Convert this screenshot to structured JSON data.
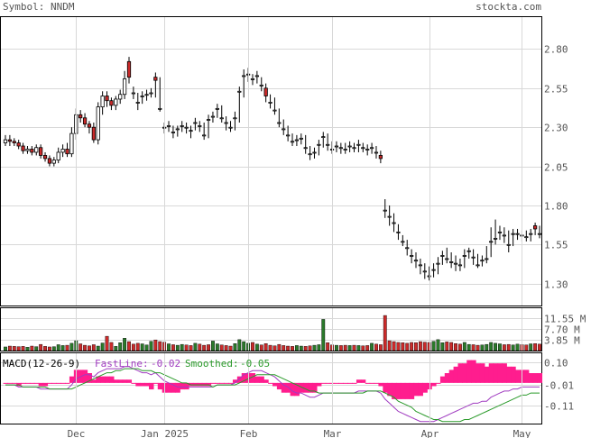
{
  "header": {
    "symbol_label": "Symbol: NNDM",
    "site": "stockta.com"
  },
  "colors": {
    "grid": "#d8d8d8",
    "frame": "#000000",
    "up": "#ffffff",
    "down": "#cc2a2a",
    "vol_up": "#2a7a2a",
    "vol_down": "#cc2a2a",
    "macd_hist": "#ff1d8e",
    "fast_line": "#a03cc0",
    "smooth_line": "#2a9a2a",
    "text": "#555555"
  },
  "chart_data": [
    {
      "type": "candlestick",
      "title": "Symbol: NNDM",
      "y_ticks": [
        "2.80",
        "2.55",
        "2.30",
        "2.05",
        "1.80",
        "1.55",
        "1.30"
      ],
      "ylim": [
        1.16,
        3.01
      ],
      "x_tick_labels": [
        "Dec",
        "Jan 2025",
        "Feb",
        "Mar",
        "Apr",
        "May"
      ],
      "x_tick_index": [
        16,
        36,
        55,
        74,
        96,
        117
      ],
      "grid": true,
      "close": [
        2.22,
        2.21,
        2.2,
        2.18,
        2.15,
        2.16,
        2.14,
        2.17,
        2.12,
        2.1,
        2.07,
        2.09,
        2.14,
        2.16,
        2.13,
        2.26,
        2.38,
        2.36,
        2.32,
        2.3,
        2.22,
        2.43,
        2.5,
        2.47,
        2.44,
        2.48,
        2.51,
        2.61,
        2.62,
        2.52,
        2.46,
        2.5,
        2.51,
        2.52,
        2.6,
        2.42,
        2.3,
        2.31,
        2.27,
        2.29,
        2.31,
        2.3,
        2.28,
        2.33,
        2.31,
        2.25,
        2.35,
        2.37,
        2.42,
        2.36,
        2.33,
        2.3,
        2.36,
        2.53,
        2.63,
        2.64,
        2.61,
        2.63,
        2.57,
        2.5,
        2.46,
        2.41,
        2.33,
        2.29,
        2.25,
        2.21,
        2.22,
        2.23,
        2.17,
        2.13,
        2.14,
        2.19,
        2.24,
        2.19,
        2.16,
        2.18,
        2.17,
        2.16,
        2.18,
        2.17,
        2.19,
        2.17,
        2.16,
        2.17,
        2.14,
        2.1,
        1.77,
        1.73,
        1.69,
        1.63,
        1.57,
        1.53,
        1.48,
        1.45,
        1.42,
        1.38,
        1.35,
        1.39,
        1.43,
        1.48,
        1.46,
        1.44,
        1.43,
        1.42,
        1.48,
        1.51,
        1.47,
        1.42,
        1.45,
        1.46,
        1.57,
        1.59,
        1.63,
        1.61,
        1.55,
        1.62,
        1.62,
        1.61,
        1.6,
        1.62,
        1.65,
        1.62
      ],
      "open": [
        2.2,
        2.22,
        2.21,
        2.2,
        2.18,
        2.15,
        2.16,
        2.14,
        2.17,
        2.12,
        2.1,
        2.07,
        2.09,
        2.14,
        2.16,
        2.13,
        2.26,
        2.38,
        2.36,
        2.32,
        2.3,
        2.22,
        2.43,
        2.5,
        2.47,
        2.44,
        2.48,
        2.51,
        2.72,
        2.52,
        2.46,
        2.5,
        2.51,
        2.52,
        2.62,
        2.42,
        2.3,
        2.31,
        2.27,
        2.29,
        2.31,
        2.3,
        2.28,
        2.33,
        2.31,
        2.25,
        2.35,
        2.37,
        2.42,
        2.36,
        2.33,
        2.3,
        2.36,
        2.53,
        2.63,
        2.64,
        2.61,
        2.63,
        2.57,
        2.55,
        2.46,
        2.41,
        2.33,
        2.29,
        2.25,
        2.21,
        2.22,
        2.23,
        2.17,
        2.13,
        2.14,
        2.19,
        2.24,
        2.19,
        2.16,
        2.18,
        2.17,
        2.16,
        2.18,
        2.17,
        2.19,
        2.17,
        2.16,
        2.17,
        2.14,
        2.12,
        1.77,
        1.73,
        1.69,
        1.63,
        1.57,
        1.53,
        1.48,
        1.45,
        1.42,
        1.38,
        1.35,
        1.39,
        1.43,
        1.48,
        1.46,
        1.44,
        1.43,
        1.42,
        1.48,
        1.51,
        1.47,
        1.42,
        1.45,
        1.46,
        1.57,
        1.59,
        1.63,
        1.61,
        1.55,
        1.62,
        1.62,
        1.61,
        1.6,
        1.62,
        1.67,
        1.62
      ],
      "high": [
        2.25,
        2.25,
        2.23,
        2.22,
        2.2,
        2.18,
        2.18,
        2.19,
        2.19,
        2.14,
        2.12,
        2.11,
        2.17,
        2.19,
        2.2,
        2.3,
        2.42,
        2.41,
        2.39,
        2.34,
        2.33,
        2.46,
        2.53,
        2.53,
        2.49,
        2.5,
        2.54,
        2.66,
        2.75,
        2.56,
        2.52,
        2.53,
        2.54,
        2.55,
        2.65,
        2.62,
        2.33,
        2.34,
        2.31,
        2.31,
        2.34,
        2.33,
        2.31,
        2.36,
        2.34,
        2.33,
        2.38,
        2.4,
        2.45,
        2.44,
        2.37,
        2.34,
        2.4,
        2.56,
        2.67,
        2.68,
        2.64,
        2.66,
        2.62,
        2.58,
        2.51,
        2.49,
        2.42,
        2.35,
        2.31,
        2.26,
        2.25,
        2.26,
        2.25,
        2.18,
        2.17,
        2.22,
        2.27,
        2.26,
        2.21,
        2.21,
        2.2,
        2.2,
        2.21,
        2.2,
        2.22,
        2.2,
        2.19,
        2.2,
        2.18,
        2.15,
        1.84,
        1.8,
        1.75,
        1.68,
        1.61,
        1.58,
        1.52,
        1.5,
        1.46,
        1.43,
        1.41,
        1.43,
        1.47,
        1.51,
        1.53,
        1.5,
        1.48,
        1.46,
        1.52,
        1.53,
        1.52,
        1.49,
        1.48,
        1.54,
        1.66,
        1.71,
        1.67,
        1.66,
        1.64,
        1.65,
        1.65,
        1.64,
        1.64,
        1.65,
        1.69,
        1.67
      ],
      "low": [
        2.18,
        2.18,
        2.18,
        2.16,
        2.13,
        2.13,
        2.12,
        2.12,
        2.1,
        2.08,
        2.05,
        2.05,
        2.07,
        2.11,
        2.11,
        2.11,
        2.22,
        2.33,
        2.3,
        2.26,
        2.2,
        2.19,
        2.38,
        2.43,
        2.41,
        2.41,
        2.45,
        2.48,
        2.58,
        2.48,
        2.41,
        2.45,
        2.47,
        2.49,
        2.49,
        2.4,
        2.26,
        2.27,
        2.23,
        2.24,
        2.27,
        2.26,
        2.23,
        2.28,
        2.27,
        2.22,
        2.23,
        2.33,
        2.36,
        2.33,
        2.28,
        2.27,
        2.28,
        2.33,
        2.49,
        2.59,
        2.57,
        2.58,
        2.53,
        2.46,
        2.42,
        2.38,
        2.3,
        2.25,
        2.21,
        2.18,
        2.18,
        2.19,
        2.13,
        2.09,
        2.1,
        2.12,
        2.17,
        2.15,
        2.13,
        2.14,
        2.13,
        2.13,
        2.14,
        2.14,
        2.14,
        2.14,
        2.12,
        2.13,
        2.1,
        2.07,
        1.72,
        1.67,
        1.63,
        1.58,
        1.54,
        1.48,
        1.43,
        1.4,
        1.36,
        1.33,
        1.32,
        1.34,
        1.36,
        1.42,
        1.43,
        1.4,
        1.38,
        1.38,
        1.4,
        1.46,
        1.42,
        1.4,
        1.41,
        1.43,
        1.47,
        1.55,
        1.58,
        1.56,
        1.5,
        1.54,
        1.58,
        1.57,
        1.57,
        1.57,
        1.61,
        1.59
      ]
    },
    {
      "type": "bar",
      "title": "Volume",
      "y_ticks": [
        "11.55 M",
        "7.70 M",
        "3.85 M"
      ],
      "ylim": [
        0,
        15.4
      ],
      "values_millions": [
        1.3,
        1.6,
        1.5,
        1.4,
        1.5,
        1.2,
        1.6,
        1.4,
        2.2,
        1.5,
        1.3,
        1.4,
        2.1,
        1.8,
        1.9,
        2.6,
        3.5,
        2.4,
        1.9,
        1.7,
        2.1,
        1.6,
        2.7,
        5.1,
        2.9,
        1.5,
        2.8,
        4.4,
        3.2,
        2.3,
        2.6,
        2.4,
        2.0,
        3.3,
        3.8,
        3.2,
        3.0,
        2.4,
        2.1,
        1.9,
        2.2,
        2.0,
        1.8,
        2.6,
        2.3,
        1.9,
        2.1,
        3.4,
        2.4,
        2.0,
        1.8,
        1.6,
        2.5,
        3.9,
        3.2,
        2.6,
        2.9,
        2.3,
        2.0,
        2.5,
        1.9,
        1.7,
        2.2,
        1.8,
        1.6,
        1.5,
        1.8,
        1.6,
        1.5,
        1.7,
        1.9,
        2.1,
        11.1,
        2.8,
        2.0,
        1.9,
        1.8,
        1.9,
        1.8,
        1.9,
        1.8,
        1.7,
        1.8,
        2.6,
        2.3,
        2.1,
        12.5,
        3.5,
        3.2,
        2.9,
        2.8,
        2.6,
        2.9,
        2.8,
        3.2,
        3.0,
        2.9,
        3.3,
        3.9,
        2.8,
        3.1,
        2.9,
        2.5,
        2.3,
        2.9,
        2.2,
        2.1,
        1.9,
        2.0,
        2.2,
        2.9,
        2.6,
        2.4,
        2.1,
        2.2,
        2.0,
        2.3,
        2.1,
        2.0,
        2.4,
        2.5,
        2.3
      ],
      "up": [
        true,
        false,
        false,
        false,
        false,
        true,
        false,
        true,
        false,
        false,
        false,
        true,
        true,
        true,
        false,
        true,
        true,
        false,
        false,
        false,
        false,
        true,
        true,
        false,
        false,
        true,
        true,
        true,
        false,
        false,
        false,
        true,
        true,
        true,
        false,
        false,
        false,
        true,
        false,
        true,
        true,
        false,
        false,
        true,
        false,
        false,
        false,
        true,
        true,
        false,
        false,
        false,
        true,
        true,
        true,
        true,
        false,
        true,
        false,
        false,
        false,
        false,
        false,
        false,
        false,
        false,
        true,
        true,
        false,
        false,
        true,
        true,
        true,
        false,
        false,
        true,
        false,
        false,
        true,
        false,
        true,
        false,
        false,
        true,
        false,
        false,
        false,
        false,
        false,
        false,
        false,
        false,
        false,
        false,
        false,
        false,
        false,
        true,
        true,
        true,
        false,
        false,
        false,
        false,
        true,
        true,
        false,
        false,
        true,
        true,
        true,
        true,
        true,
        false,
        false,
        true,
        true,
        false,
        false,
        true,
        false,
        false
      ]
    },
    {
      "type": "line",
      "title": "MACD(12-26-9)",
      "legend": [
        "FastLine: -0.02",
        "Smoothed: -0.05"
      ],
      "fast_label": "FastLine:",
      "fast_value": "-0.02",
      "smooth_label": "Smoothed:",
      "smooth_value": "-0.05",
      "y_ticks": [
        "0.10",
        "-0.01",
        "-0.11"
      ],
      "ylim": [
        -0.2,
        0.15
      ],
      "fast": [
        -0.01,
        -0.01,
        -0.01,
        -0.02,
        -0.02,
        -0.02,
        -0.02,
        -0.02,
        -0.03,
        -0.03,
        -0.03,
        -0.03,
        -0.03,
        -0.03,
        -0.03,
        -0.01,
        0.02,
        0.03,
        0.04,
        0.04,
        0.03,
        0.05,
        0.06,
        0.07,
        0.07,
        0.07,
        0.07,
        0.08,
        0.08,
        0.07,
        0.06,
        0.05,
        0.05,
        0.04,
        0.05,
        0.03,
        0.01,
        0.0,
        -0.01,
        -0.02,
        -0.02,
        -0.02,
        -0.02,
        -0.02,
        -0.02,
        -0.02,
        -0.02,
        -0.02,
        -0.01,
        -0.01,
        -0.01,
        -0.01,
        0.0,
        0.02,
        0.04,
        0.05,
        0.06,
        0.06,
        0.06,
        0.05,
        0.04,
        0.03,
        0.01,
        -0.01,
        -0.02,
        -0.04,
        -0.05,
        -0.05,
        -0.06,
        -0.07,
        -0.07,
        -0.06,
        -0.05,
        -0.05,
        -0.05,
        -0.05,
        -0.05,
        -0.05,
        -0.05,
        -0.05,
        -0.04,
        -0.04,
        -0.04,
        -0.04,
        -0.04,
        -0.05,
        -0.08,
        -0.1,
        -0.12,
        -0.14,
        -0.15,
        -0.16,
        -0.17,
        -0.18,
        -0.19,
        -0.19,
        -0.19,
        -0.19,
        -0.18,
        -0.17,
        -0.16,
        -0.15,
        -0.14,
        -0.13,
        -0.12,
        -0.11,
        -0.1,
        -0.1,
        -0.09,
        -0.09,
        -0.07,
        -0.06,
        -0.05,
        -0.04,
        -0.04,
        -0.03,
        -0.03,
        -0.02,
        -0.02,
        -0.02,
        -0.02,
        -0.02
      ],
      "smoothed": [
        -0.01,
        -0.01,
        -0.01,
        -0.01,
        -0.02,
        -0.02,
        -0.02,
        -0.02,
        -0.02,
        -0.02,
        -0.03,
        -0.03,
        -0.03,
        -0.03,
        -0.03,
        -0.03,
        -0.02,
        -0.01,
        0.0,
        0.01,
        0.02,
        0.03,
        0.04,
        0.05,
        0.05,
        0.06,
        0.06,
        0.07,
        0.07,
        0.07,
        0.07,
        0.06,
        0.06,
        0.06,
        0.05,
        0.05,
        0.04,
        0.03,
        0.02,
        0.01,
        0.0,
        0.0,
        -0.01,
        -0.01,
        -0.01,
        -0.01,
        -0.01,
        -0.02,
        -0.01,
        -0.01,
        -0.01,
        -0.01,
        -0.01,
        0.0,
        0.01,
        0.02,
        0.03,
        0.04,
        0.04,
        0.04,
        0.04,
        0.04,
        0.03,
        0.02,
        0.01,
        0.0,
        -0.01,
        -0.02,
        -0.03,
        -0.04,
        -0.04,
        -0.05,
        -0.05,
        -0.05,
        -0.05,
        -0.05,
        -0.05,
        -0.05,
        -0.05,
        -0.05,
        -0.05,
        -0.05,
        -0.04,
        -0.04,
        -0.04,
        -0.04,
        -0.05,
        -0.06,
        -0.07,
        -0.09,
        -0.1,
        -0.11,
        -0.12,
        -0.14,
        -0.15,
        -0.16,
        -0.17,
        -0.18,
        -0.18,
        -0.19,
        -0.19,
        -0.19,
        -0.19,
        -0.19,
        -0.18,
        -0.18,
        -0.17,
        -0.16,
        -0.15,
        -0.14,
        -0.13,
        -0.12,
        -0.11,
        -0.1,
        -0.09,
        -0.08,
        -0.07,
        -0.06,
        -0.06,
        -0.05,
        -0.05,
        -0.05
      ]
    }
  ]
}
